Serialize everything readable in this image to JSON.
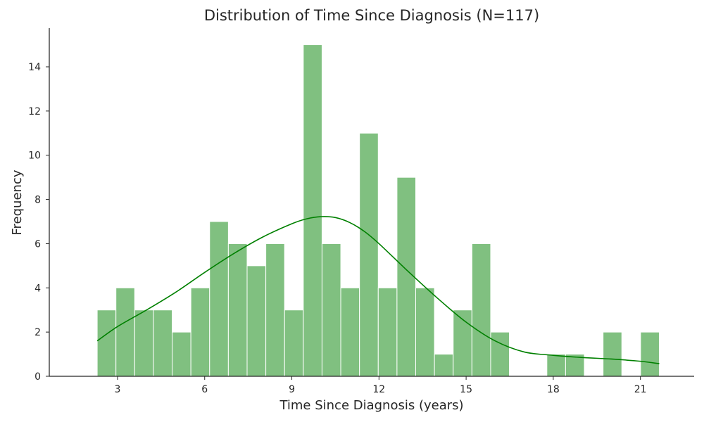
{
  "chart_data": {
    "type": "bar",
    "title": "Distribution of Time Since Diagnosis (N=117)",
    "xlabel": "Time Since Diagnosis (years)",
    "ylabel": "Frequency",
    "xlim": [
      0.65,
      22.85
    ],
    "ylim": [
      0,
      15.75
    ],
    "x_ticks": [
      3,
      6,
      9,
      12,
      15,
      18,
      21
    ],
    "y_ticks": [
      0,
      2,
      4,
      6,
      8,
      10,
      12,
      14
    ],
    "bin_start": 2.3,
    "bin_width": 0.645,
    "counts": [
      3,
      4,
      3,
      3,
      2,
      4,
      7,
      6,
      5,
      6,
      3,
      15,
      6,
      4,
      11,
      4,
      9,
      4,
      1,
      3,
      6,
      2,
      0,
      0,
      1,
      1,
      0,
      2,
      0,
      2
    ],
    "kde": {
      "x": [
        2.3,
        3.0,
        4.0,
        5.0,
        6.0,
        7.0,
        8.0,
        9.0,
        9.5,
        10.0,
        10.5,
        11.0,
        11.5,
        12.0,
        13.0,
        14.0,
        15.0,
        16.0,
        17.0,
        18.0,
        19.0,
        20.0,
        21.0,
        21.65
      ],
      "y": [
        1.6,
        2.25,
        3.0,
        3.8,
        4.7,
        5.55,
        6.3,
        6.9,
        7.12,
        7.22,
        7.18,
        6.95,
        6.55,
        6.0,
        4.75,
        3.55,
        2.45,
        1.6,
        1.1,
        0.95,
        0.85,
        0.78,
        0.68,
        0.57
      ]
    },
    "grid": false,
    "legend": "none"
  }
}
